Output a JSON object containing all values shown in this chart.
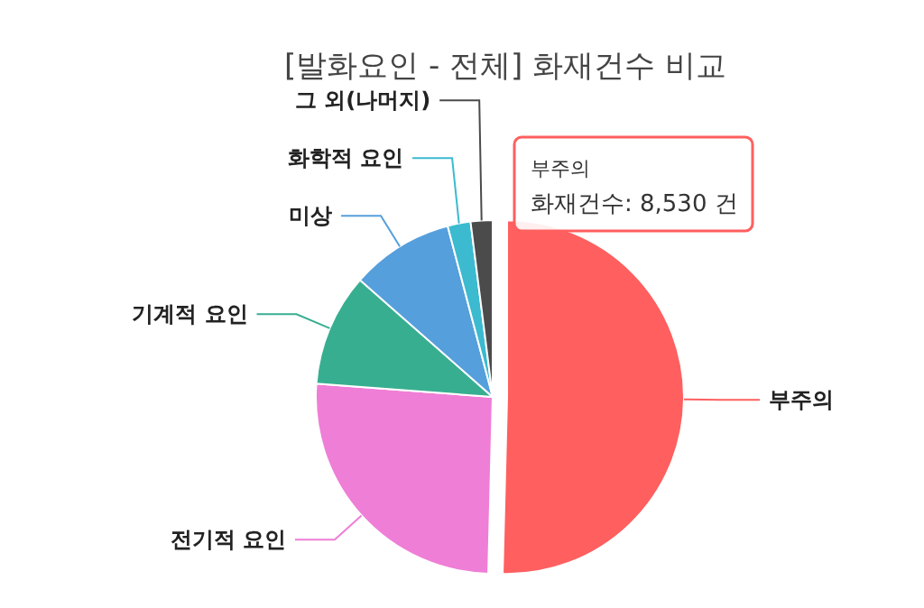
{
  "chart_data": {
    "type": "pie",
    "title": "[발화요인 - 전체] 화재건수 비교",
    "categories": [
      "부주의",
      "전기적 요인",
      "기계적 요인",
      "미상",
      "화학적 요인",
      "그 외(나머지)"
    ],
    "values": [
      50.4,
      25.8,
      10.3,
      9.4,
      2.1,
      2.0
    ],
    "colors": [
      "#ff5f5f",
      "#ef7ed6",
      "#38ae91",
      "#559fdc",
      "#3bbad0",
      "#4b4b4b"
    ],
    "annotations": [
      {
        "text": "부주의",
        "x": "부주의"
      },
      {
        "text": "화재건수: 8,530 건",
        "x": "부주의"
      }
    ]
  }
}
